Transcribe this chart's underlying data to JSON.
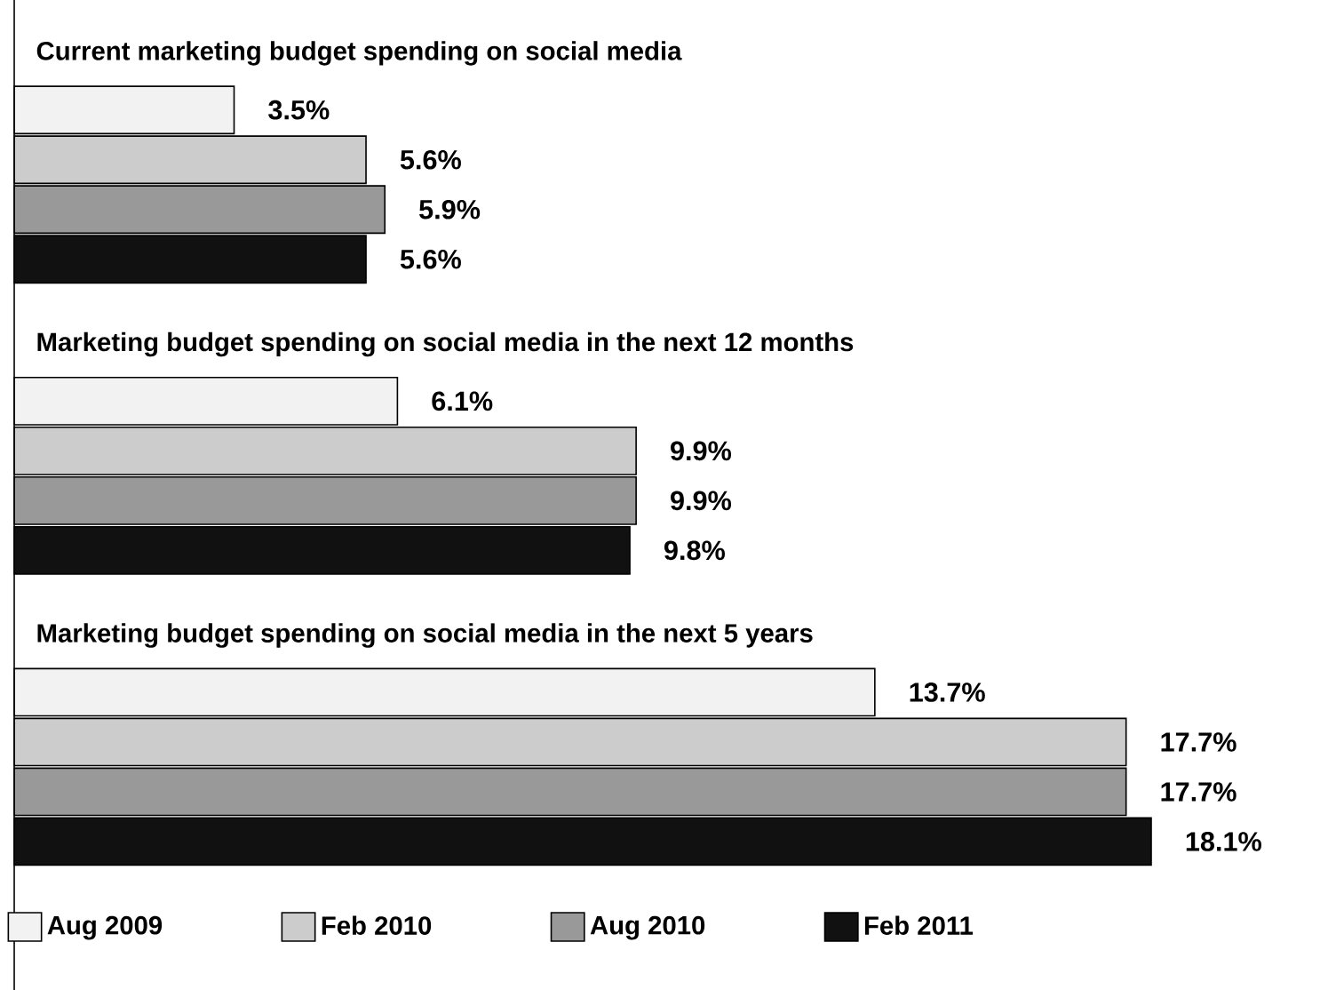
{
  "chart_data": {
    "type": "bar",
    "orientation": "horizontal",
    "legend": "bottom",
    "categories": [
      "Current marketing budget spending on social media",
      "Marketing budget spending on social media in the next 12 months",
      "Marketing budget spending on social media in the next 5 years"
    ],
    "series": [
      {
        "name": "Aug 2009",
        "color": "#f2f2f2",
        "values": [
          3.5,
          6.1,
          13.7
        ],
        "value_labels": [
          "3.5%",
          "6.1%",
          "13.7%"
        ]
      },
      {
        "name": "Feb 2010",
        "color": "#cccccc",
        "values": [
          5.6,
          9.9,
          17.7
        ],
        "value_labels": [
          "5.6%",
          "9.9%",
          "17.7%"
        ]
      },
      {
        "name": "Aug 2010",
        "color": "#999999",
        "values": [
          5.9,
          9.9,
          17.7
        ],
        "value_labels": [
          "5.9%",
          "9.9%",
          "17.7%"
        ]
      },
      {
        "name": "Feb 2011",
        "color": "#111111",
        "values": [
          5.6,
          9.8,
          18.1
        ],
        "value_labels": [
          "5.6%",
          "9.8%",
          "18.1%"
        ]
      }
    ]
  }
}
